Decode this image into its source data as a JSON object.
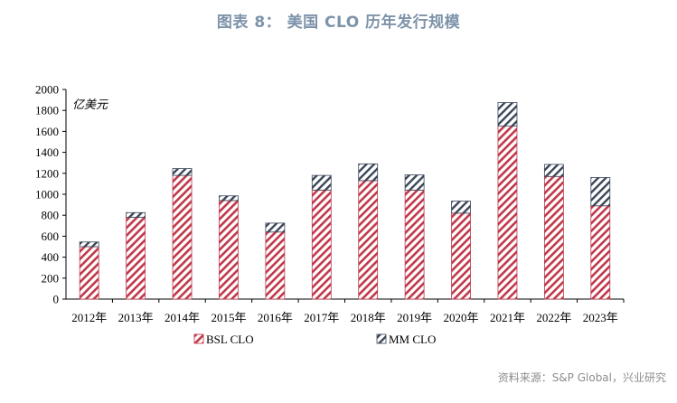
{
  "title": "图表 8：  美国 CLO 历年发行规模",
  "source": "资料来源：S&P Global，兴业研究",
  "colors": {
    "bsl": "#c0384a",
    "mm": "#3a4658",
    "title": "#7d93aa"
  },
  "chart_data": {
    "type": "bar",
    "stacked": true,
    "unit_label": "亿美元",
    "categories": [
      "2012年",
      "2013年",
      "2014年",
      "2015年",
      "2016年",
      "2017年",
      "2018年",
      "2019年",
      "2020年",
      "2021年",
      "2022年",
      "2023年"
    ],
    "series": [
      {
        "name": "BSL CLO",
        "pattern": "diagonal-red",
        "values": [
          500,
          780,
          1180,
          940,
          640,
          1040,
          1130,
          1040,
          820,
          1650,
          1170,
          890
        ]
      },
      {
        "name": "MM CLO",
        "pattern": "diagonal-navy",
        "values": [
          45,
          45,
          65,
          45,
          85,
          140,
          160,
          145,
          115,
          225,
          115,
          270
        ]
      }
    ],
    "ylim": [
      0,
      2000
    ],
    "yticks": [
      0,
      200,
      400,
      600,
      800,
      1000,
      1200,
      1400,
      1600,
      1800,
      2000
    ],
    "legend_position": "bottom",
    "grid": false
  }
}
